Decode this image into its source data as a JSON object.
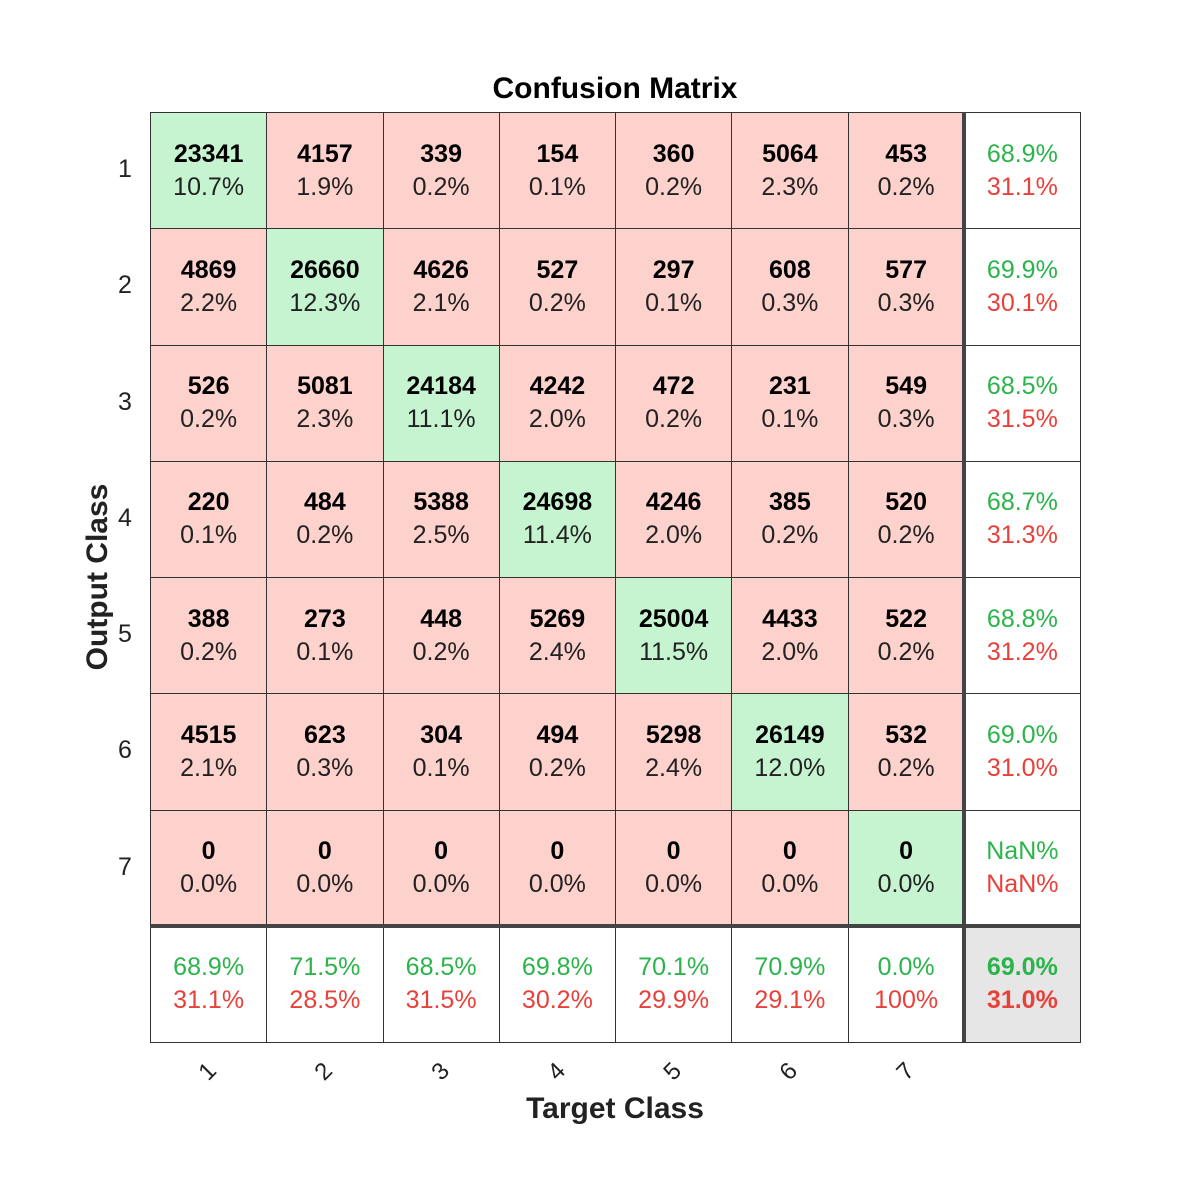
{
  "chart_data": {
    "type": "heatmap",
    "title": "Confusion Matrix",
    "xlabel": "Target Class",
    "ylabel": "Output Class",
    "x_tick_labels": [
      "1",
      "2",
      "3",
      "4",
      "5",
      "6",
      "7"
    ],
    "y_tick_labels": [
      "1",
      "2",
      "3",
      "4",
      "5",
      "6",
      "7"
    ],
    "counts": [
      [
        23341,
        4157,
        339,
        154,
        360,
        5064,
        453
      ],
      [
        4869,
        26660,
        4626,
        527,
        297,
        608,
        577
      ],
      [
        526,
        5081,
        24184,
        4242,
        472,
        231,
        549
      ],
      [
        220,
        484,
        5388,
        24698,
        4246,
        385,
        520
      ],
      [
        388,
        273,
        448,
        5269,
        25004,
        4433,
        522
      ],
      [
        4515,
        623,
        304,
        494,
        5298,
        26149,
        532
      ],
      [
        0,
        0,
        0,
        0,
        0,
        0,
        0
      ]
    ],
    "percentages": [
      [
        "10.7%",
        "1.9%",
        "0.2%",
        "0.1%",
        "0.2%",
        "2.3%",
        "0.2%"
      ],
      [
        "2.2%",
        "12.3%",
        "2.1%",
        "0.2%",
        "0.1%",
        "0.3%",
        "0.3%"
      ],
      [
        "0.2%",
        "2.3%",
        "11.1%",
        "2.0%",
        "0.2%",
        "0.1%",
        "0.3%"
      ],
      [
        "0.1%",
        "0.2%",
        "2.5%",
        "11.4%",
        "2.0%",
        "0.2%",
        "0.2%"
      ],
      [
        "0.2%",
        "0.1%",
        "0.2%",
        "2.4%",
        "11.5%",
        "2.0%",
        "0.2%"
      ],
      [
        "2.1%",
        "0.3%",
        "0.1%",
        "0.2%",
        "2.4%",
        "12.0%",
        "0.2%"
      ],
      [
        "0.0%",
        "0.0%",
        "0.0%",
        "0.0%",
        "0.0%",
        "0.0%",
        "0.0%"
      ]
    ],
    "row_summary": [
      [
        "68.9%",
        "31.1%"
      ],
      [
        "69.9%",
        "30.1%"
      ],
      [
        "68.5%",
        "31.5%"
      ],
      [
        "68.7%",
        "31.3%"
      ],
      [
        "68.8%",
        "31.2%"
      ],
      [
        "69.0%",
        "31.0%"
      ],
      [
        "NaN%",
        "NaN%"
      ]
    ],
    "column_summary": [
      [
        "68.9%",
        "31.1%"
      ],
      [
        "71.5%",
        "28.5%"
      ],
      [
        "68.5%",
        "31.5%"
      ],
      [
        "69.8%",
        "30.2%"
      ],
      [
        "70.1%",
        "29.9%"
      ],
      [
        "70.9%",
        "29.1%"
      ],
      [
        "0.0%",
        "100%"
      ]
    ],
    "overall": [
      "69.0%",
      "31.0%"
    ],
    "colors": {
      "correct_cell": "#c6f4d0",
      "incorrect_cell": "#fdd1cc",
      "summary_cell": "#ffffff",
      "overall_cell": "#e6e6e6",
      "good_text": "#2ab44a",
      "bad_text": "#e8403a"
    }
  }
}
